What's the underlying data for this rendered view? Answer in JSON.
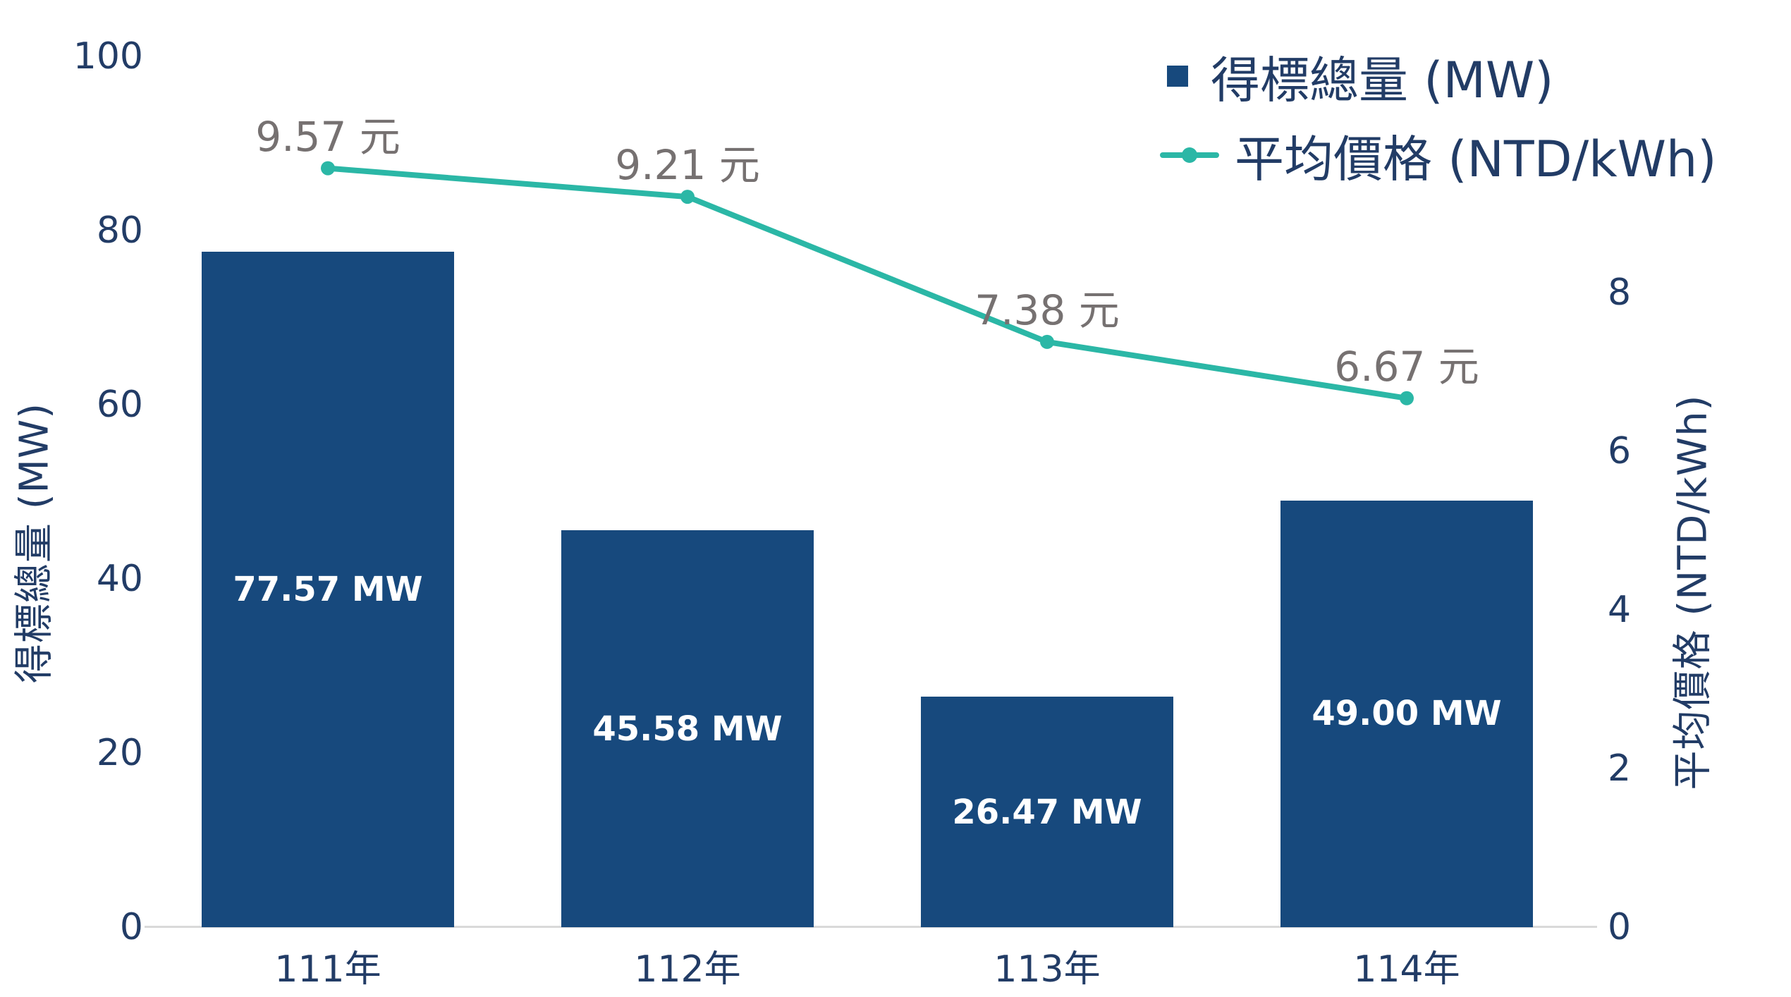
{
  "chart_data": {
    "type": "bar+line combo",
    "categories": [
      "111年",
      "112年",
      "113年",
      "114年"
    ],
    "series": [
      {
        "name": "得標總量 (MW)",
        "type": "bar",
        "axis": "left",
        "values": [
          77.57,
          45.58,
          26.47,
          49.0
        ],
        "data_labels": [
          "77.57 MW",
          "45.58 MW",
          "26.47 MW",
          "49.00 MW"
        ],
        "color": "#17497D",
        "label_color": "#FFFFFF"
      },
      {
        "name": "平均價格 (NTD/kWh)",
        "type": "line",
        "axis": "right",
        "values": [
          9.57,
          9.21,
          7.38,
          6.67
        ],
        "data_labels": [
          "9.57 元",
          "9.21 元",
          "7.38 元",
          "6.67 元"
        ],
        "color": "#2BB7A6",
        "label_color": "#767171"
      }
    ],
    "left_axis": {
      "title": "得標總量 (MW)",
      "min": 0,
      "max": 100,
      "ticks": [
        100,
        80,
        60,
        40,
        20,
        0
      ]
    },
    "right_axis": {
      "title": "平均價格 (NTD/kWh)",
      "min": 0,
      "ticks": [
        8,
        6,
        4,
        2,
        0
      ]
    },
    "grid": "off",
    "legend_position": "top-right",
    "title": ""
  },
  "legend": {
    "items": [
      {
        "label": "得標總量 (MW)",
        "marker": "square",
        "color": "#17497D"
      },
      {
        "label": "平均價格 (NTD/kWh)",
        "marker": "line-dot",
        "color": "#2BB7A6"
      }
    ]
  },
  "colors": {
    "bar_fill": "#17497D",
    "line_teal": "#2BB7A6",
    "text_navy": "#223C66",
    "data_label_gray": "#767171",
    "axis_line_gray": "#D9D9D9",
    "background": "#FFFFFF"
  }
}
